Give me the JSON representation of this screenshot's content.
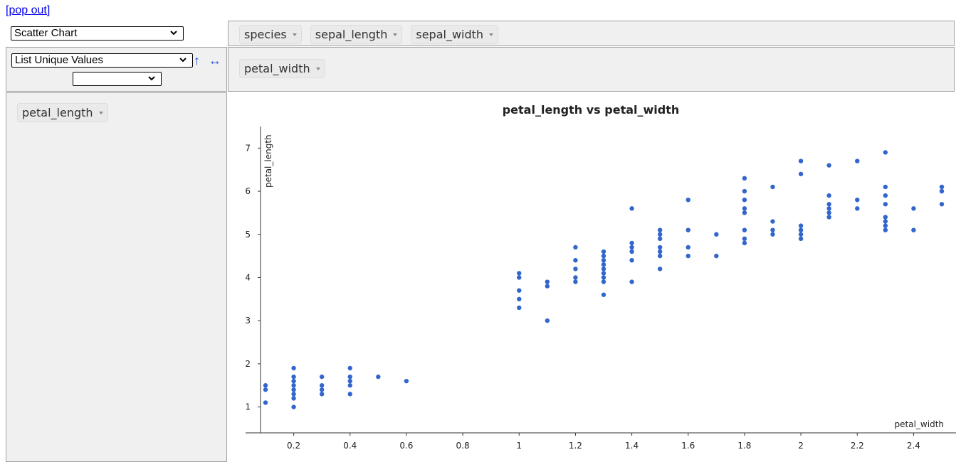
{
  "popout_link": "[pop out]",
  "renderer": {
    "selected": "Scatter Chart"
  },
  "aggregator": {
    "selected": "List Unique Values",
    "attribute": ""
  },
  "sort_rows_symbol": "↑",
  "sort_cols_symbol": "↔",
  "unused_attrs": [
    "species",
    "sepal_length",
    "sepal_width"
  ],
  "col_attrs": [
    "petal_width"
  ],
  "row_attrs": [
    "petal_length"
  ],
  "chart_data": {
    "type": "scatter",
    "title": "petal_length vs petal_width",
    "xlabel": "petal_width",
    "ylabel": "petal_length",
    "x_ticks": [
      "0.2",
      "0.4",
      "0.6",
      "0.8",
      "1",
      "1.2",
      "1.4",
      "1.6",
      "1.8",
      "2",
      "2.2",
      "2.4"
    ],
    "y_ticks": [
      "1",
      "2",
      "3",
      "4",
      "5",
      "6",
      "7"
    ],
    "xlim": [
      0.1,
      2.5
    ],
    "ylim": [
      0.4,
      7.5
    ],
    "color": "#3366cc",
    "points": [
      [
        0.1,
        1.1
      ],
      [
        0.1,
        1.4
      ],
      [
        0.1,
        1.5
      ],
      [
        0.2,
        1.0
      ],
      [
        0.2,
        1.2
      ],
      [
        0.2,
        1.3
      ],
      [
        0.2,
        1.4
      ],
      [
        0.2,
        1.5
      ],
      [
        0.2,
        1.6
      ],
      [
        0.2,
        1.7
      ],
      [
        0.2,
        1.9
      ],
      [
        0.3,
        1.3
      ],
      [
        0.3,
        1.4
      ],
      [
        0.3,
        1.5
      ],
      [
        0.3,
        1.7
      ],
      [
        0.4,
        1.3
      ],
      [
        0.4,
        1.5
      ],
      [
        0.4,
        1.6
      ],
      [
        0.4,
        1.7
      ],
      [
        0.4,
        1.9
      ],
      [
        0.5,
        1.7
      ],
      [
        0.6,
        1.6
      ],
      [
        1.0,
        3.3
      ],
      [
        1.0,
        3.5
      ],
      [
        1.0,
        3.7
      ],
      [
        1.0,
        4.0
      ],
      [
        1.0,
        4.1
      ],
      [
        1.1,
        3.0
      ],
      [
        1.1,
        3.8
      ],
      [
        1.1,
        3.9
      ],
      [
        1.2,
        3.9
      ],
      [
        1.2,
        4.0
      ],
      [
        1.2,
        4.2
      ],
      [
        1.2,
        4.4
      ],
      [
        1.2,
        4.7
      ],
      [
        1.3,
        3.6
      ],
      [
        1.3,
        3.9
      ],
      [
        1.3,
        4.0
      ],
      [
        1.3,
        4.1
      ],
      [
        1.3,
        4.2
      ],
      [
        1.3,
        4.3
      ],
      [
        1.3,
        4.4
      ],
      [
        1.3,
        4.5
      ],
      [
        1.3,
        4.6
      ],
      [
        1.4,
        3.9
      ],
      [
        1.4,
        4.4
      ],
      [
        1.4,
        4.6
      ],
      [
        1.4,
        4.7
      ],
      [
        1.4,
        4.8
      ],
      [
        1.4,
        5.6
      ],
      [
        1.5,
        4.2
      ],
      [
        1.5,
        4.5
      ],
      [
        1.5,
        4.6
      ],
      [
        1.5,
        4.7
      ],
      [
        1.5,
        4.9
      ],
      [
        1.5,
        5.0
      ],
      [
        1.5,
        5.1
      ],
      [
        1.6,
        4.5
      ],
      [
        1.6,
        4.7
      ],
      [
        1.6,
        5.1
      ],
      [
        1.6,
        5.8
      ],
      [
        1.7,
        4.5
      ],
      [
        1.7,
        5.0
      ],
      [
        1.8,
        4.8
      ],
      [
        1.8,
        4.9
      ],
      [
        1.8,
        5.1
      ],
      [
        1.8,
        5.5
      ],
      [
        1.8,
        5.6
      ],
      [
        1.8,
        5.8
      ],
      [
        1.8,
        6.0
      ],
      [
        1.8,
        6.3
      ],
      [
        1.9,
        5.0
      ],
      [
        1.9,
        5.1
      ],
      [
        1.9,
        5.3
      ],
      [
        1.9,
        6.1
      ],
      [
        2.0,
        4.9
      ],
      [
        2.0,
        5.0
      ],
      [
        2.0,
        5.1
      ],
      [
        2.0,
        5.2
      ],
      [
        2.0,
        6.4
      ],
      [
        2.0,
        6.7
      ],
      [
        2.1,
        5.4
      ],
      [
        2.1,
        5.5
      ],
      [
        2.1,
        5.6
      ],
      [
        2.1,
        5.7
      ],
      [
        2.1,
        5.9
      ],
      [
        2.1,
        6.6
      ],
      [
        2.2,
        5.6
      ],
      [
        2.2,
        5.8
      ],
      [
        2.2,
        6.7
      ],
      [
        2.3,
        5.1
      ],
      [
        2.3,
        5.2
      ],
      [
        2.3,
        5.3
      ],
      [
        2.3,
        5.4
      ],
      [
        2.3,
        5.7
      ],
      [
        2.3,
        5.9
      ],
      [
        2.3,
        6.1
      ],
      [
        2.3,
        6.9
      ],
      [
        2.4,
        5.1
      ],
      [
        2.4,
        5.6
      ],
      [
        2.5,
        5.7
      ],
      [
        2.5,
        6.0
      ],
      [
        2.5,
        6.1
      ]
    ]
  }
}
